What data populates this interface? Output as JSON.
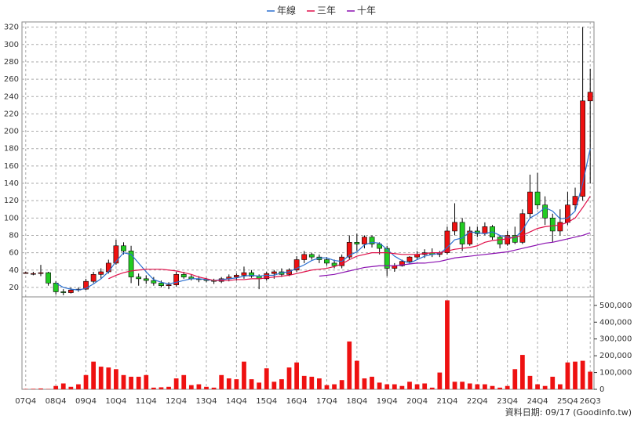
{
  "chart_data": [
    {
      "type": "candlestick",
      "categories": [
        "07Q4",
        null,
        null,
        null,
        "08Q4",
        null,
        null,
        null,
        "09Q4",
        null,
        null,
        null,
        "10Q4",
        null,
        null,
        null,
        "11Q4",
        null,
        null,
        null,
        "12Q4",
        null,
        null,
        null,
        "13Q4",
        null,
        null,
        null,
        "14Q4",
        null,
        null,
        null,
        "15Q4",
        null,
        null,
        null,
        "16Q4",
        null,
        null,
        null,
        "17Q4",
        null,
        null,
        null,
        "18Q4",
        null,
        null,
        null,
        "19Q4",
        null,
        null,
        null,
        "20Q4",
        null,
        null,
        null,
        "21Q4",
        null,
        null,
        null,
        "22Q4",
        null,
        null,
        null,
        "23Q4",
        null,
        null,
        null,
        "24Q4",
        null,
        null,
        null,
        "25Q4",
        null,
        null,
        "26Q3"
      ],
      "open": [
        37,
        36,
        36,
        37,
        25,
        15,
        14,
        17,
        18,
        27,
        35,
        38,
        48,
        68,
        62,
        32,
        30,
        28,
        25,
        22,
        23,
        35,
        32,
        30,
        29,
        28,
        27,
        30,
        32,
        34,
        37,
        33,
        30,
        36,
        38,
        35,
        40,
        52,
        58,
        55,
        52,
        48,
        45,
        55,
        72,
        70,
        78,
        70,
        65,
        42,
        45,
        50,
        55,
        58,
        60,
        58,
        60,
        85,
        95,
        70,
        85,
        82,
        90,
        78,
        70,
        80,
        72,
        105,
        130,
        115,
        100,
        85,
        95,
        115,
        125,
        235
      ],
      "high": [
        38,
        38,
        46,
        38,
        27,
        18,
        20,
        20,
        30,
        38,
        42,
        52,
        75,
        72,
        68,
        36,
        34,
        32,
        28,
        26,
        38,
        38,
        35,
        33,
        31,
        30,
        32,
        35,
        36,
        44,
        40,
        35,
        38,
        40,
        42,
        42,
        56,
        62,
        60,
        58,
        55,
        52,
        58,
        80,
        82,
        80,
        80,
        72,
        68,
        48,
        52,
        56,
        62,
        64,
        65,
        62,
        90,
        117,
        100,
        90,
        90,
        95,
        92,
        80,
        85,
        90,
        110,
        150,
        152,
        125,
        105,
        110,
        130,
        135,
        320,
        272
      ],
      "low": [
        36,
        34,
        33,
        22,
        12,
        11,
        13,
        15,
        17,
        25,
        30,
        36,
        46,
        58,
        25,
        22,
        24,
        22,
        20,
        18,
        21,
        30,
        28,
        26,
        26,
        24,
        25,
        27,
        28,
        30,
        31,
        18,
        28,
        30,
        32,
        33,
        38,
        48,
        52,
        48,
        45,
        42,
        42,
        52,
        62,
        65,
        66,
        58,
        33,
        38,
        44,
        48,
        52,
        54,
        55,
        55,
        58,
        80,
        62,
        68,
        78,
        80,
        75,
        65,
        68,
        70,
        70,
        100,
        110,
        92,
        72,
        80,
        92,
        108,
        120,
        140
      ],
      "close": [
        37,
        36,
        37,
        25,
        15,
        14,
        17,
        18,
        27,
        35,
        38,
        48,
        68,
        62,
        32,
        30,
        28,
        25,
        22,
        23,
        35,
        32,
        30,
        29,
        28,
        27,
        30,
        32,
        34,
        37,
        33,
        30,
        36,
        38,
        35,
        40,
        52,
        58,
        55,
        52,
        48,
        45,
        55,
        72,
        70,
        78,
        70,
        65,
        42,
        45,
        50,
        55,
        58,
        60,
        58,
        60,
        85,
        95,
        70,
        85,
        82,
        90,
        78,
        70,
        80,
        72,
        105,
        130,
        115,
        100,
        85,
        95,
        115,
        125,
        235,
        245
      ],
      "up_color": "#ee1111",
      "down_color": "#22cc22",
      "series": [
        {
          "name": "年線",
          "color": "#2a6fd0",
          "values": [
            null,
            null,
            null,
            null,
            25,
            20,
            18,
            17,
            19,
            24,
            30,
            38,
            50,
            60,
            58,
            48,
            38,
            29,
            26,
            24,
            26,
            28,
            30,
            30,
            29,
            28,
            29,
            30,
            31,
            33,
            34,
            33,
            34,
            34,
            37,
            38,
            42,
            46,
            51,
            54,
            54,
            51,
            50,
            57,
            61,
            69,
            72,
            71,
            64,
            56,
            51,
            48,
            52,
            56,
            58,
            59,
            66,
            75,
            77,
            84,
            83,
            82,
            84,
            80,
            78,
            77,
            86,
            100,
            105,
            112,
            108,
            99,
            100,
            108,
            140,
            180
          ]
        },
        {
          "name": "三年",
          "color": "#e0104a",
          "values": [
            null,
            null,
            null,
            null,
            null,
            null,
            null,
            null,
            null,
            null,
            null,
            30,
            34,
            37,
            39,
            40,
            41,
            41,
            41,
            40,
            39,
            37,
            35,
            32,
            30,
            28,
            28,
            28,
            29,
            29,
            30,
            30,
            31,
            32,
            33,
            34,
            36,
            38,
            40,
            41,
            42,
            44,
            47,
            52,
            56,
            58,
            60,
            60,
            60,
            59,
            58,
            58,
            58,
            59,
            60,
            60,
            62,
            64,
            65,
            66,
            68,
            72,
            74,
            75,
            76,
            78,
            80,
            84,
            88,
            90,
            91,
            92,
            95,
            100,
            112,
            125
          ]
        },
        {
          "name": "十年",
          "color": "#8a10b0",
          "values": [
            null,
            null,
            null,
            null,
            null,
            null,
            null,
            null,
            null,
            null,
            null,
            null,
            null,
            null,
            null,
            null,
            null,
            null,
            null,
            null,
            null,
            null,
            null,
            null,
            null,
            null,
            null,
            null,
            null,
            null,
            null,
            null,
            null,
            null,
            null,
            null,
            null,
            null,
            null,
            33,
            34,
            35,
            37,
            39,
            41,
            43,
            44,
            45,
            45,
            45,
            46,
            47,
            48,
            48,
            49,
            50,
            52,
            54,
            55,
            56,
            57,
            58,
            59,
            60,
            61,
            63,
            65,
            67,
            69,
            71,
            72,
            74,
            76,
            78,
            80,
            83
          ]
        }
      ],
      "ylim": [
        10,
        326
      ],
      "yticks": [
        20,
        40,
        60,
        80,
        100,
        120,
        140,
        160,
        180,
        200,
        220,
        240,
        260,
        280,
        300,
        320
      ],
      "grid": true,
      "legend": "top",
      "footer": "資料日期: 09/17  (Goodinfo.tw)"
    },
    {
      "type": "bar",
      "values": [
        2000,
        3000,
        5000,
        2000,
        20000,
        35000,
        15000,
        30000,
        85000,
        165000,
        135000,
        130000,
        120000,
        85000,
        75000,
        75000,
        85000,
        10000,
        12000,
        15000,
        65000,
        85000,
        25000,
        30000,
        15000,
        10000,
        85000,
        65000,
        60000,
        165000,
        60000,
        40000,
        125000,
        45000,
        60000,
        130000,
        160000,
        80000,
        75000,
        65000,
        25000,
        30000,
        55000,
        285000,
        170000,
        65000,
        75000,
        40000,
        30000,
        30000,
        20000,
        45000,
        30000,
        35000,
        10000,
        100000,
        530000,
        45000,
        45000,
        35000,
        30000,
        30000,
        20000,
        10000,
        20000,
        120000,
        205000,
        80000,
        30000,
        20000,
        75000,
        30000,
        160000,
        165000,
        170000,
        105000
      ],
      "color": "#ee1111",
      "ylim": [
        0,
        546000
      ],
      "yticks": [
        0,
        {
          "value": 100000,
          "label": "100,000"
        },
        {
          "value": 200000,
          "label": "200,000"
        },
        {
          "value": 300000,
          "label": "300,000"
        },
        {
          "value": 400000,
          "label": "400,000"
        },
        {
          "value": 500000,
          "label": "500,000"
        }
      ]
    }
  ]
}
